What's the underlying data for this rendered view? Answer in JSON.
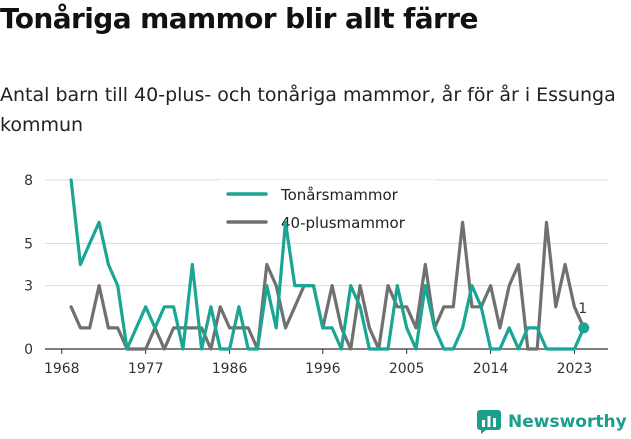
{
  "title": "Tonåriga mammor blir allt färre",
  "subtitle": "Antal barn till 40-plus- och tonåriga mammor, år för år i Essunga kommun",
  "brand": {
    "name": "Newsworthy",
    "icon": "newsworthy-logo-icon"
  },
  "colors": {
    "teen": "#1aa595",
    "over40": "#707070",
    "grid": "#d9d9d9",
    "axis": "#333333"
  },
  "chart_data": {
    "type": "line",
    "title": "Tonåriga mammor blir allt färre",
    "subtitle": "Antal barn till 40-plus- och tonåriga mammor, år för år i Essunga kommun",
    "x": [
      1969,
      1970,
      1971,
      1972,
      1973,
      1974,
      1975,
      1976,
      1977,
      1978,
      1979,
      1980,
      1981,
      1982,
      1983,
      1984,
      1985,
      1986,
      1987,
      1988,
      1989,
      1990,
      1991,
      1992,
      1993,
      1994,
      1995,
      1996,
      1997,
      1998,
      1999,
      2000,
      2001,
      2002,
      2003,
      2004,
      2005,
      2006,
      2007,
      2008,
      2009,
      2010,
      2011,
      2012,
      2013,
      2014,
      2015,
      2016,
      2017,
      2018,
      2019,
      2020,
      2021,
      2022,
      2023,
      2024
    ],
    "xticks": [
      1968,
      1977,
      1986,
      1996,
      2005,
      2014,
      2023
    ],
    "yticks": [
      0,
      3,
      5,
      8
    ],
    "ylim": [
      0,
      8
    ],
    "legend_position": "top-center",
    "grid": true,
    "series": [
      {
        "name": "Tonårsmammor",
        "color": "#1aa595",
        "values": [
          8,
          4,
          5,
          6,
          4,
          3,
          0,
          1,
          2,
          1,
          2,
          2,
          0,
          4,
          0,
          2,
          0,
          0,
          2,
          0,
          0,
          3,
          1,
          6,
          3,
          3,
          3,
          1,
          1,
          0,
          3,
          2,
          0,
          0,
          0,
          3,
          1,
          0,
          3,
          1,
          0,
          0,
          1,
          3,
          2,
          0,
          0,
          1,
          0,
          1,
          1,
          0,
          0,
          0,
          0,
          1
        ]
      },
      {
        "name": "40-plusmammor",
        "color": "#707070",
        "values": [
          2,
          1,
          1,
          3,
          1,
          1,
          0,
          0,
          0,
          1,
          0,
          1,
          1,
          1,
          1,
          0,
          2,
          1,
          1,
          1,
          0,
          4,
          3,
          1,
          2,
          3,
          3,
          1,
          3,
          1,
          0,
          3,
          1,
          0,
          3,
          2,
          2,
          1,
          4,
          1,
          2,
          2,
          6,
          2,
          2,
          3,
          1,
          3,
          4,
          0,
          0,
          6,
          2,
          4,
          2,
          1
        ]
      }
    ],
    "annotations": [
      {
        "x": 2024,
        "y": 1,
        "text": "1",
        "series": "Tonårsmammor"
      }
    ]
  }
}
